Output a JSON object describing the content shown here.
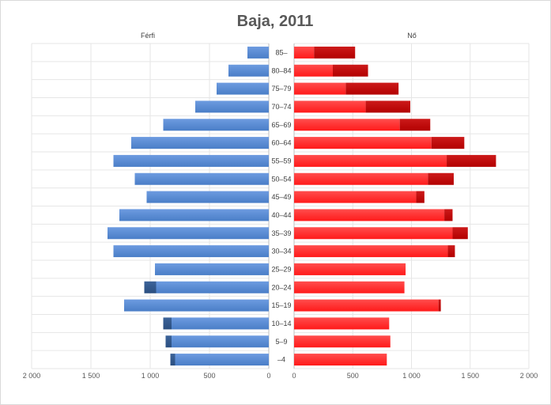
{
  "chart_data": {
    "type": "bar",
    "orientation": "horizontal-population-pyramid",
    "title": "Baja, 2011",
    "left_label": "Férfi",
    "right_label": "Nő",
    "categories": [
      "85–",
      "80–84",
      "75–79",
      "70–74",
      "65–69",
      "60–64",
      "55–59",
      "50–54",
      "45–49",
      "40–44",
      "35–39",
      "30–34",
      "25–29",
      "20–24",
      "15–19",
      "10–14",
      "5–9",
      "–4"
    ],
    "male": {
      "light": [
        180,
        340,
        440,
        620,
        890,
        1160,
        1310,
        1130,
        1030,
        1260,
        1360,
        1310,
        960,
        950,
        1220,
        820,
        820,
        790
      ],
      "dark": [
        0,
        0,
        0,
        0,
        0,
        0,
        0,
        0,
        0,
        0,
        0,
        0,
        0,
        100,
        0,
        70,
        50,
        40
      ]
    },
    "female": {
      "light": [
        170,
        330,
        440,
        610,
        900,
        1170,
        1300,
        1140,
        1040,
        1280,
        1350,
        1310,
        950,
        940,
        1230,
        810,
        820,
        790
      ],
      "dark": [
        350,
        300,
        450,
        380,
        260,
        280,
        420,
        220,
        70,
        70,
        130,
        60,
        0,
        0,
        20,
        0,
        0,
        0
      ]
    },
    "x_ticks": [
      "2 000",
      "1 500",
      "1 000",
      "500",
      "0"
    ],
    "x_ticks_right": [
      "0",
      "500",
      "1 000",
      "1 500",
      "2 000"
    ],
    "xlim": [
      0,
      2000
    ],
    "grid": true,
    "colors": {
      "male_light": "#4a7ec7",
      "male_dark": "#2b4f80",
      "female_light": "#ff1a1a",
      "female_dark": "#b30000"
    }
  }
}
